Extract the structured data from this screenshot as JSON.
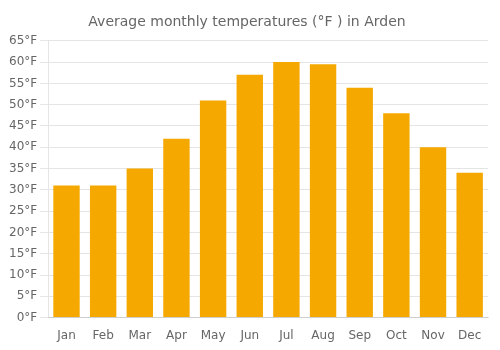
{
  "chart_data": {
    "type": "bar",
    "title": "Average monthly temperatures (°F ) in Arden",
    "categories": [
      "Jan",
      "Feb",
      "Mar",
      "Apr",
      "May",
      "Jun",
      "Jul",
      "Aug",
      "Sep",
      "Oct",
      "Nov",
      "Dec"
    ],
    "values": [
      31,
      31,
      35,
      42,
      51,
      57,
      60,
      59.5,
      54,
      48,
      40,
      34
    ],
    "color": "#F5A800",
    "ylim": [
      0,
      65
    ],
    "yticks": [
      {
        "value": 0,
        "label": "0°F"
      },
      {
        "value": 5,
        "label": "5°F"
      },
      {
        "value": 10,
        "label": "10°F"
      },
      {
        "value": 15,
        "label": "15°F"
      },
      {
        "value": 20,
        "label": "20°F"
      },
      {
        "value": 25,
        "label": "25°F"
      },
      {
        "value": 30,
        "label": "30°F"
      },
      {
        "value": 35,
        "label": "35°F"
      },
      {
        "value": 40,
        "label": "40°F"
      },
      {
        "value": 45,
        "label": "45°F"
      },
      {
        "value": 50,
        "label": "50°F"
      },
      {
        "value": 55,
        "label": "55°F"
      },
      {
        "value": 60,
        "label": "60°F"
      },
      {
        "value": 65,
        "label": "65°F"
      }
    ],
    "grid": true
  }
}
